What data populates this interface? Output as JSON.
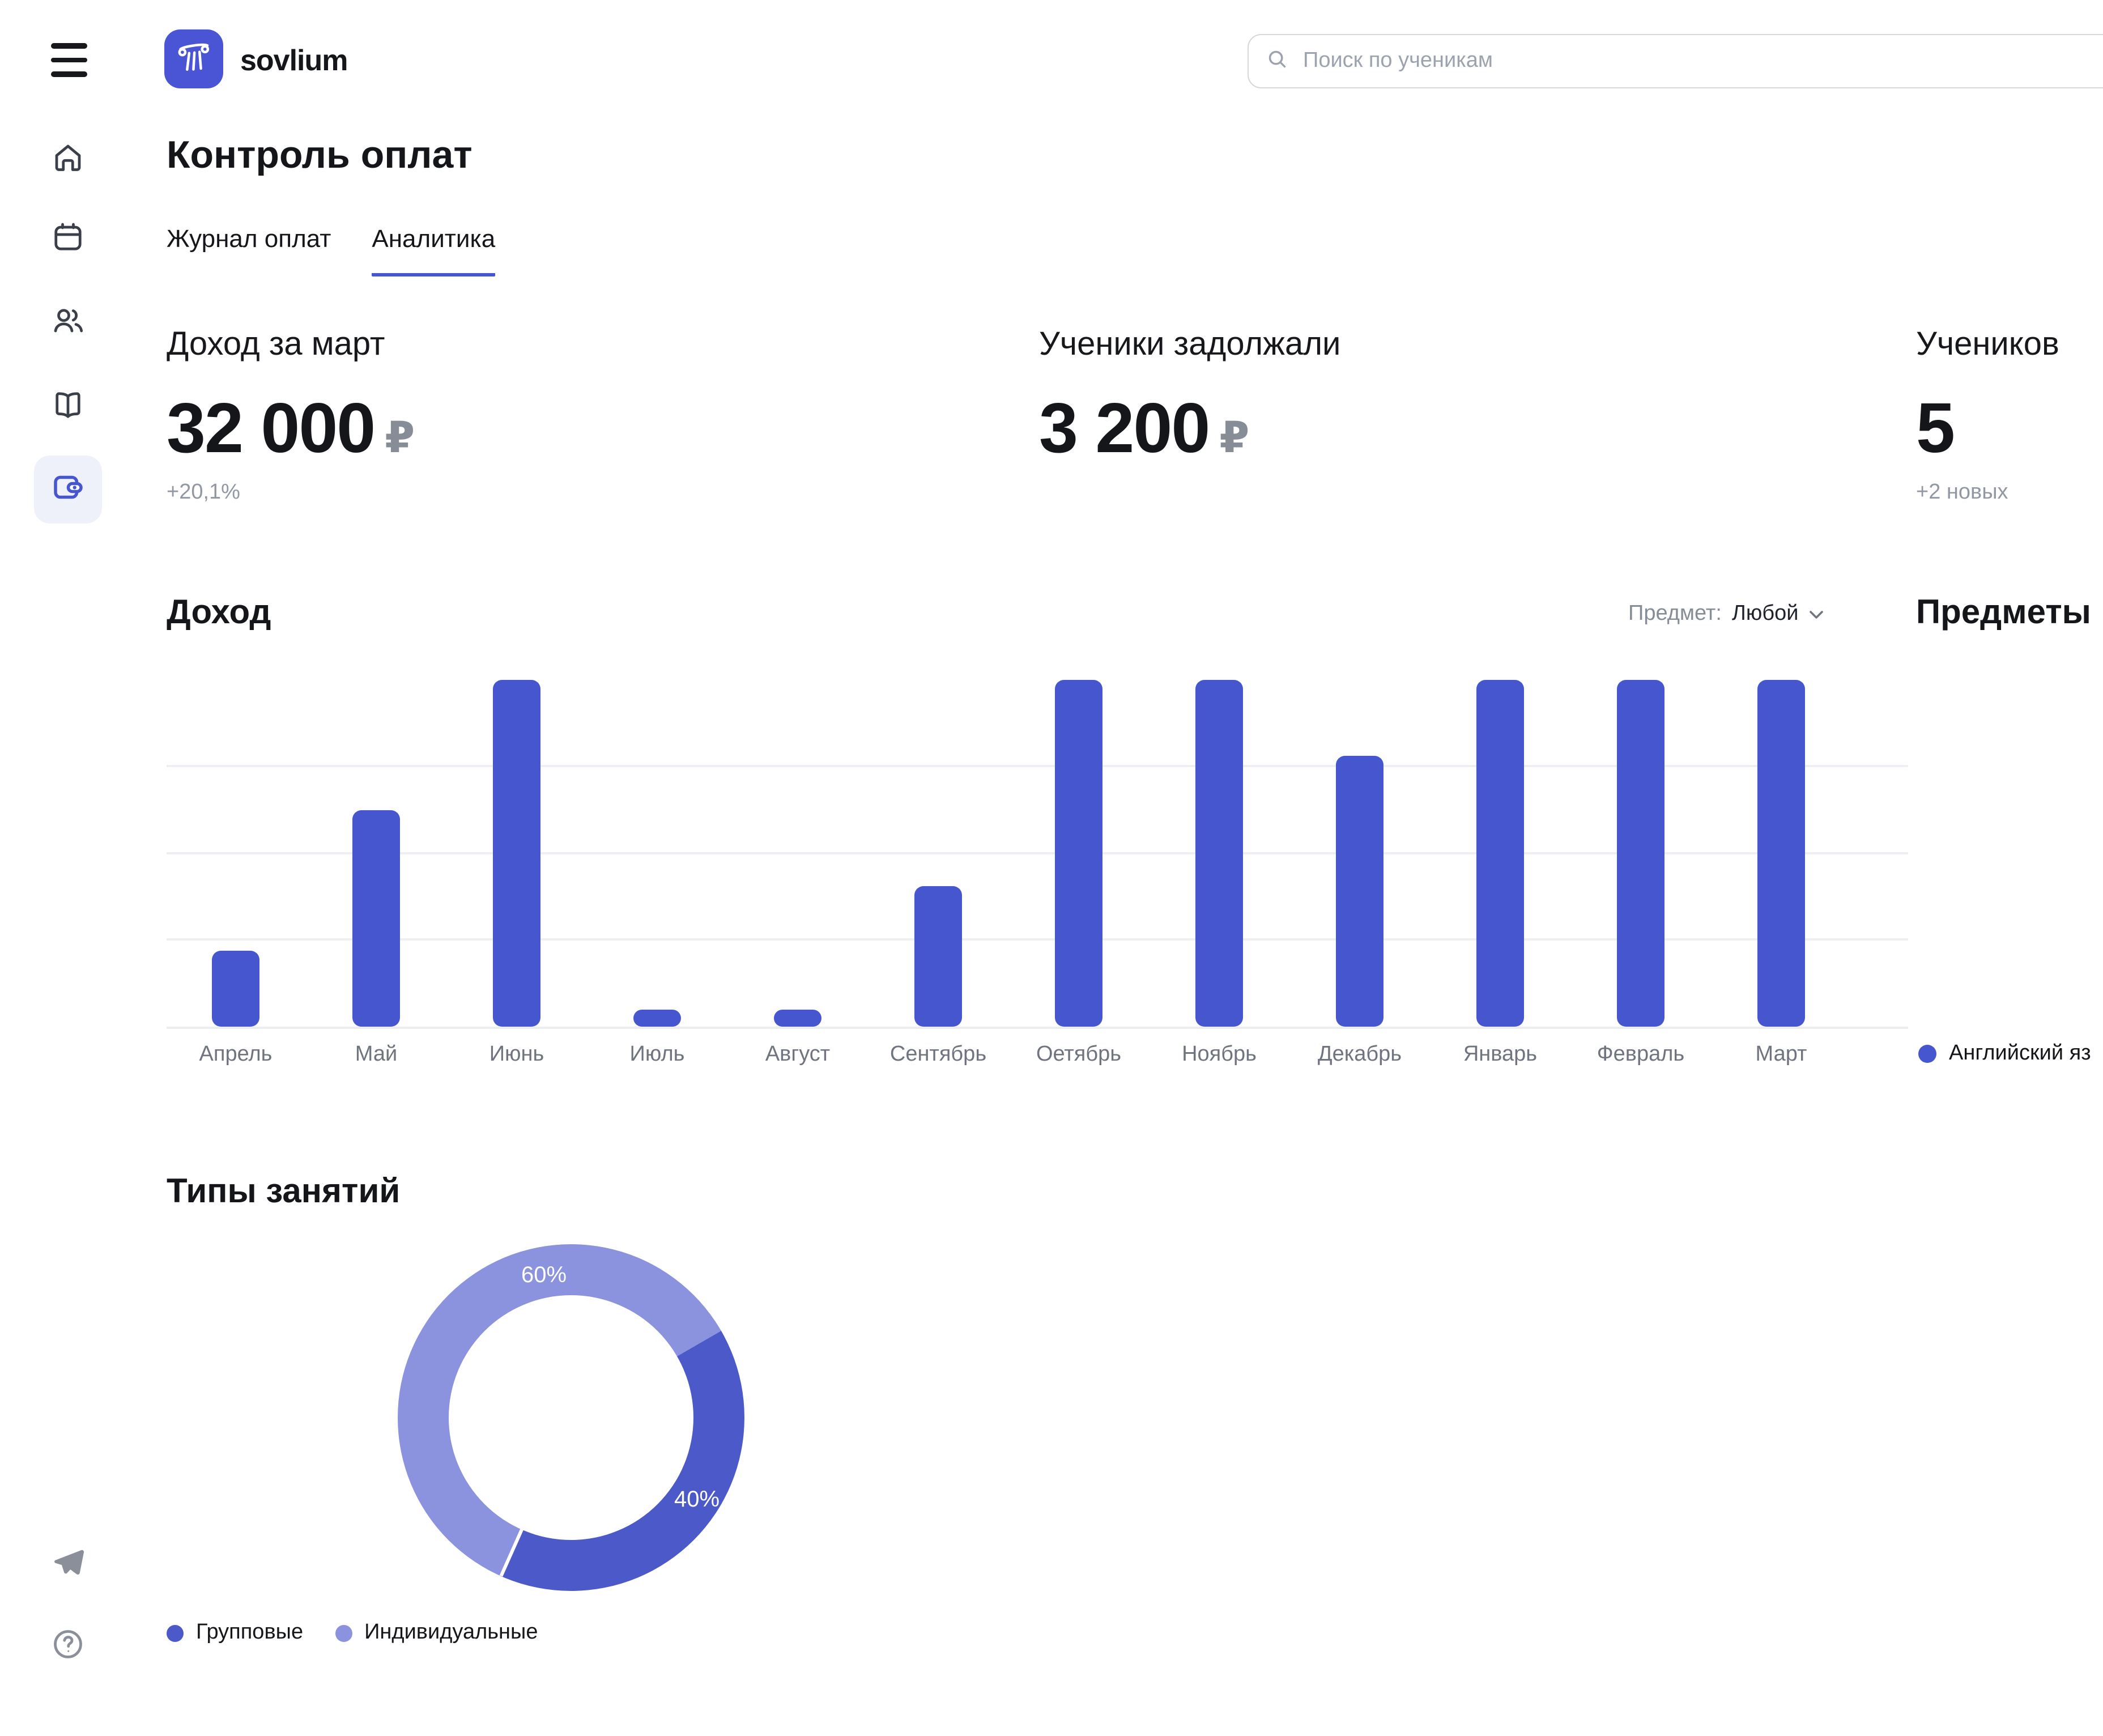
{
  "brand": {
    "name": "sovlium"
  },
  "search": {
    "placeholder": "Поиск по ученикам"
  },
  "page": {
    "title": "Контроль оплат"
  },
  "tabs": [
    {
      "label": "Журнал оплат",
      "active": false
    },
    {
      "label": "Аналитика",
      "active": true
    }
  ],
  "stats": [
    {
      "label": "Доход за март",
      "value": "32 000",
      "currency": "₽",
      "delta": "+20,1%"
    },
    {
      "label": "Ученики задолжали",
      "value": "3 200",
      "currency": "₽",
      "delta": ""
    },
    {
      "label": "Учеников",
      "value": "5",
      "currency": "",
      "delta": "+2 новых"
    }
  ],
  "income": {
    "title": "Доход",
    "filter": {
      "prefix": "Предмет:",
      "value": "Любой"
    },
    "legend": {
      "label": "Английский яз",
      "color": "#4656CE"
    }
  },
  "subjects": {
    "title": "Предметы"
  },
  "lesson_types": {
    "title": "Типы занятий",
    "labels": {
      "light": "60%",
      "dark": "40%"
    },
    "legend": [
      {
        "label": "Групповые",
        "color": "#4B59C9"
      },
      {
        "label": "Индивидуальные",
        "color": "#8B93DE"
      }
    ]
  },
  "sidebar": {
    "items": [
      "home",
      "calendar",
      "students",
      "materials",
      "payments"
    ],
    "active": "payments",
    "footer_items": [
      "telegram",
      "help"
    ]
  },
  "colors": {
    "primary": "#4656CE",
    "donut_dark": "#4B59C9",
    "donut_light": "#8B93DE",
    "active_bg": "#EEF0FA"
  },
  "chart_data": [
    {
      "type": "bar",
      "title": "Доход",
      "categories": [
        "Апрель",
        "Май",
        "Июнь",
        "Июль",
        "Август",
        "Сентябрь",
        "Оетябрь",
        "Ноябрь",
        "Декабрь",
        "Январь",
        "Февраль",
        "Март"
      ],
      "values": [
        7000,
        20000,
        32000,
        1600,
        1600,
        13000,
        32000,
        32000,
        25000,
        32000,
        32000,
        32000
      ],
      "series_label": "Английский яз",
      "xlabel": "",
      "ylabel": "",
      "ylim": [
        0,
        32000
      ],
      "gridlines": [
        8000,
        16000,
        24000
      ],
      "grid": true,
      "legend_position": "bottom-right",
      "bar_color": "#4656CE"
    },
    {
      "type": "pie",
      "title": "Типы занятий",
      "labels": [
        "Групповые",
        "Индивидуальные"
      ],
      "values": [
        40,
        60
      ],
      "colors": [
        "#4B59C9",
        "#8B93DE"
      ],
      "donut": true,
      "dark_segment_start_deg": 60,
      "dark_segment_end_deg": 204,
      "annotations": [
        "60%",
        "40%"
      ],
      "legend_position": "bottom-left"
    }
  ]
}
